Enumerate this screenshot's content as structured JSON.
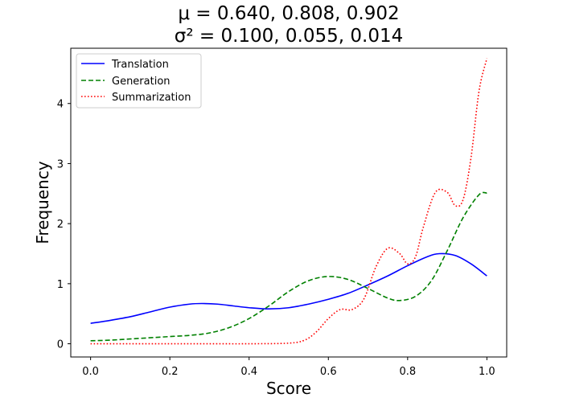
{
  "chart_data": {
    "type": "line",
    "title_lines": [
      "μ = 0.640, 0.808, 0.902",
      "σ² = 0.100, 0.055, 0.014"
    ],
    "xlabel": "Score",
    "ylabel": "Frequency",
    "xlim": [
      -0.05,
      1.05
    ],
    "ylim": [
      -0.22,
      4.92
    ],
    "x_ticks": [
      0.0,
      0.2,
      0.4,
      0.6,
      0.8,
      1.0
    ],
    "x_tick_labels": [
      "0.0",
      "0.2",
      "0.4",
      "0.6",
      "0.8",
      "1.0"
    ],
    "y_ticks": [
      0,
      1,
      2,
      3,
      4
    ],
    "y_tick_labels": [
      "0",
      "1",
      "2",
      "3",
      "4"
    ],
    "grid": false,
    "legend_position": "top-left",
    "series": [
      {
        "name": "Translation",
        "color": "#0000ff",
        "style": "solid",
        "points": [
          [
            0.0,
            0.34
          ],
          [
            0.05,
            0.39
          ],
          [
            0.1,
            0.45
          ],
          [
            0.15,
            0.53
          ],
          [
            0.2,
            0.61
          ],
          [
            0.25,
            0.66
          ],
          [
            0.28,
            0.67
          ],
          [
            0.32,
            0.66
          ],
          [
            0.36,
            0.63
          ],
          [
            0.4,
            0.6
          ],
          [
            0.45,
            0.58
          ],
          [
            0.5,
            0.6
          ],
          [
            0.55,
            0.66
          ],
          [
            0.6,
            0.74
          ],
          [
            0.65,
            0.84
          ],
          [
            0.7,
            0.98
          ],
          [
            0.75,
            1.13
          ],
          [
            0.8,
            1.3
          ],
          [
            0.85,
            1.45
          ],
          [
            0.88,
            1.5
          ],
          [
            0.92,
            1.47
          ],
          [
            0.96,
            1.33
          ],
          [
            1.0,
            1.13
          ]
        ]
      },
      {
        "name": "Generation",
        "color": "#008000",
        "style": "dashed",
        "points": [
          [
            0.0,
            0.05
          ],
          [
            0.05,
            0.06
          ],
          [
            0.1,
            0.08
          ],
          [
            0.15,
            0.1
          ],
          [
            0.2,
            0.12
          ],
          [
            0.25,
            0.14
          ],
          [
            0.3,
            0.18
          ],
          [
            0.35,
            0.27
          ],
          [
            0.4,
            0.42
          ],
          [
            0.45,
            0.63
          ],
          [
            0.5,
            0.87
          ],
          [
            0.55,
            1.05
          ],
          [
            0.6,
            1.12
          ],
          [
            0.65,
            1.07
          ],
          [
            0.7,
            0.92
          ],
          [
            0.75,
            0.76
          ],
          [
            0.78,
            0.72
          ],
          [
            0.82,
            0.79
          ],
          [
            0.86,
            1.05
          ],
          [
            0.9,
            1.55
          ],
          [
            0.94,
            2.1
          ],
          [
            0.98,
            2.48
          ],
          [
            1.0,
            2.51
          ]
        ]
      },
      {
        "name": "Summarization",
        "color": "#ff0000",
        "style": "dotted",
        "points": [
          [
            0.0,
            0.0
          ],
          [
            0.1,
            0.0
          ],
          [
            0.2,
            0.0
          ],
          [
            0.3,
            0.0
          ],
          [
            0.4,
            0.0
          ],
          [
            0.5,
            0.01
          ],
          [
            0.54,
            0.06
          ],
          [
            0.57,
            0.2
          ],
          [
            0.6,
            0.42
          ],
          [
            0.63,
            0.57
          ],
          [
            0.66,
            0.57
          ],
          [
            0.69,
            0.75
          ],
          [
            0.72,
            1.28
          ],
          [
            0.75,
            1.59
          ],
          [
            0.78,
            1.5
          ],
          [
            0.8,
            1.33
          ],
          [
            0.82,
            1.45
          ],
          [
            0.84,
            1.95
          ],
          [
            0.87,
            2.52
          ],
          [
            0.9,
            2.52
          ],
          [
            0.92,
            2.3
          ],
          [
            0.94,
            2.4
          ],
          [
            0.96,
            3.1
          ],
          [
            0.98,
            4.2
          ],
          [
            1.0,
            4.75
          ]
        ]
      }
    ]
  }
}
